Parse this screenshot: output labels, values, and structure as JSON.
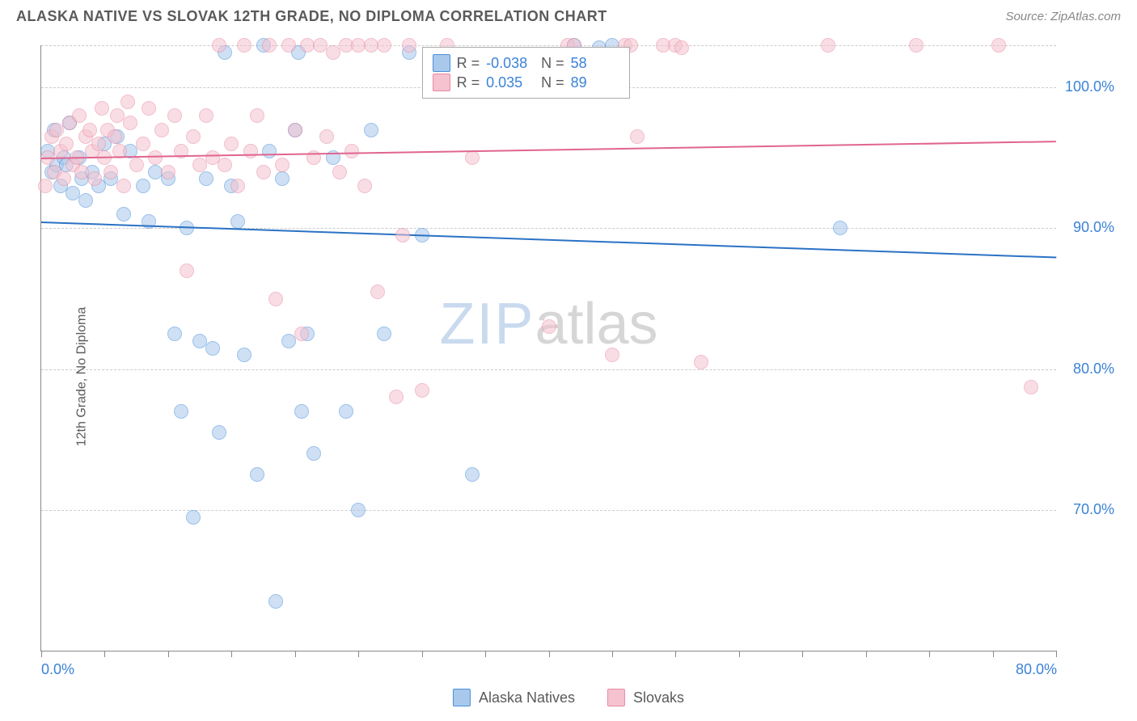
{
  "title": "ALASKA NATIVE VS SLOVAK 12TH GRADE, NO DIPLOMA CORRELATION CHART",
  "source": "Source: ZipAtlas.com",
  "ylabel": "12th Grade, No Diploma",
  "watermark_zip": "ZIP",
  "watermark_atlas": "atlas",
  "chart": {
    "type": "scatter",
    "xlim": [
      0,
      80
    ],
    "ylim": [
      60,
      103
    ],
    "xtick_step": 5,
    "xtick_labels": [
      {
        "x": 0,
        "label": "0.0%"
      },
      {
        "x": 80,
        "label": "80.0%"
      }
    ],
    "ytick_labels": [
      {
        "y": 70,
        "label": "70.0%"
      },
      {
        "y": 80,
        "label": "80.0%"
      },
      {
        "y": 90,
        "label": "90.0%"
      },
      {
        "y": 100,
        "label": "100.0%"
      }
    ],
    "gridlines_y": [
      70,
      80,
      90,
      100,
      103
    ],
    "background_color": "#ffffff",
    "grid_color": "#cccccc",
    "axis_color": "#888888",
    "label_color": "#3b82d6",
    "text_color": "#5a5a5a",
    "point_radius": 9,
    "point_opacity": 0.55,
    "series": [
      {
        "name": "Alaska Natives",
        "fill_color": "#a8c8ec",
        "stroke_color": "#4a90d9",
        "trend": {
          "y_at_x0": 90.5,
          "y_at_xmax": 88.0,
          "color": "#2a72c4",
          "width": 2
        },
        "R": "-0.038",
        "N": "58",
        "points": [
          [
            0.5,
            95.5
          ],
          [
            0.8,
            94.0
          ],
          [
            1.0,
            97.0
          ],
          [
            1.2,
            94.5
          ],
          [
            1.5,
            93.0
          ],
          [
            1.8,
            95.0
          ],
          [
            2.0,
            94.5
          ],
          [
            2.2,
            97.5
          ],
          [
            2.5,
            92.5
          ],
          [
            3.0,
            95.0
          ],
          [
            3.2,
            93.5
          ],
          [
            3.5,
            92.0
          ],
          [
            4.0,
            94.0
          ],
          [
            4.5,
            93.0
          ],
          [
            5.0,
            96.0
          ],
          [
            5.5,
            93.5
          ],
          [
            6.0,
            96.5
          ],
          [
            6.5,
            91.0
          ],
          [
            7.0,
            95.5
          ],
          [
            8.0,
            93.0
          ],
          [
            8.5,
            90.5
          ],
          [
            9.0,
            94.0
          ],
          [
            10.0,
            93.5
          ],
          [
            10.5,
            82.5
          ],
          [
            11.0,
            77.0
          ],
          [
            11.5,
            90.0
          ],
          [
            12.0,
            69.5
          ],
          [
            12.5,
            82.0
          ],
          [
            13.0,
            93.5
          ],
          [
            13.5,
            81.5
          ],
          [
            14.0,
            75.5
          ],
          [
            14.5,
            102.5
          ],
          [
            15.0,
            93.0
          ],
          [
            15.5,
            90.5
          ],
          [
            16.0,
            81.0
          ],
          [
            17.0,
            72.5
          ],
          [
            17.5,
            103.0
          ],
          [
            18.0,
            95.5
          ],
          [
            18.5,
            63.5
          ],
          [
            19.0,
            93.5
          ],
          [
            19.5,
            82.0
          ],
          [
            20.0,
            97.0
          ],
          [
            20.3,
            102.5
          ],
          [
            20.5,
            77.0
          ],
          [
            21.0,
            82.5
          ],
          [
            21.5,
            74.0
          ],
          [
            23.0,
            95.0
          ],
          [
            24.0,
            77.0
          ],
          [
            25.0,
            70.0
          ],
          [
            26.0,
            97.0
          ],
          [
            27.0,
            82.5
          ],
          [
            29.0,
            102.5
          ],
          [
            30.0,
            89.5
          ],
          [
            34.0,
            72.5
          ],
          [
            42.0,
            103.0
          ],
          [
            44.0,
            102.8
          ],
          [
            45.0,
            103.0
          ],
          [
            63.0,
            90.0
          ]
        ]
      },
      {
        "name": "Slovaks",
        "fill_color": "#f5c2cf",
        "stroke_color": "#e88ba3",
        "trend": {
          "y_at_x0": 95.0,
          "y_at_xmax": 96.2,
          "color": "#e06590",
          "width": 2
        },
        "R": "0.035",
        "N": "89",
        "points": [
          [
            0.3,
            93.0
          ],
          [
            0.5,
            95.0
          ],
          [
            0.8,
            96.5
          ],
          [
            1.0,
            94.0
          ],
          [
            1.2,
            97.0
          ],
          [
            1.5,
            95.5
          ],
          [
            1.8,
            93.5
          ],
          [
            2.0,
            96.0
          ],
          [
            2.2,
            97.5
          ],
          [
            2.5,
            94.5
          ],
          [
            2.8,
            95.0
          ],
          [
            3.0,
            98.0
          ],
          [
            3.2,
            94.0
          ],
          [
            3.5,
            96.5
          ],
          [
            3.8,
            97.0
          ],
          [
            4.0,
            95.5
          ],
          [
            4.2,
            93.5
          ],
          [
            4.5,
            96.0
          ],
          [
            4.8,
            98.5
          ],
          [
            5.0,
            95.0
          ],
          [
            5.2,
            97.0
          ],
          [
            5.5,
            94.0
          ],
          [
            5.8,
            96.5
          ],
          [
            6.0,
            98.0
          ],
          [
            6.2,
            95.5
          ],
          [
            6.5,
            93.0
          ],
          [
            7.0,
            97.5
          ],
          [
            7.5,
            94.5
          ],
          [
            8.0,
            96.0
          ],
          [
            8.5,
            98.5
          ],
          [
            9.0,
            95.0
          ],
          [
            9.5,
            97.0
          ],
          [
            10.0,
            94.0
          ],
          [
            10.5,
            98.0
          ],
          [
            11.0,
            95.5
          ],
          [
            11.5,
            87.0
          ],
          [
            12.0,
            96.5
          ],
          [
            12.5,
            94.5
          ],
          [
            13.0,
            98.0
          ],
          [
            13.5,
            95.0
          ],
          [
            14.0,
            103.0
          ],
          [
            14.5,
            94.5
          ],
          [
            15.0,
            96.0
          ],
          [
            15.5,
            93.0
          ],
          [
            16.0,
            103.0
          ],
          [
            16.5,
            95.5
          ],
          [
            17.0,
            98.0
          ],
          [
            17.5,
            94.0
          ],
          [
            18.0,
            103.0
          ],
          [
            18.5,
            85.0
          ],
          [
            19.0,
            94.5
          ],
          [
            19.5,
            103.0
          ],
          [
            20.0,
            97.0
          ],
          [
            20.5,
            82.5
          ],
          [
            21.0,
            103.0
          ],
          [
            21.5,
            95.0
          ],
          [
            22.0,
            103.0
          ],
          [
            22.5,
            96.5
          ],
          [
            23.0,
            102.5
          ],
          [
            23.5,
            94.0
          ],
          [
            24.0,
            103.0
          ],
          [
            24.5,
            95.5
          ],
          [
            25.0,
            103.0
          ],
          [
            25.5,
            93.0
          ],
          [
            26.0,
            103.0
          ],
          [
            26.5,
            85.5
          ],
          [
            27.0,
            103.0
          ],
          [
            28.0,
            78.0
          ],
          [
            28.5,
            89.5
          ],
          [
            29.0,
            103.0
          ],
          [
            30.0,
            78.5
          ],
          [
            32.0,
            103.0
          ],
          [
            34.0,
            95.0
          ],
          [
            40.0,
            83.0
          ],
          [
            41.5,
            103.0
          ],
          [
            42.0,
            103.0
          ],
          [
            45.0,
            81.0
          ],
          [
            46.0,
            103.0
          ],
          [
            46.5,
            103.0
          ],
          [
            49.0,
            103.0
          ],
          [
            50.0,
            103.0
          ],
          [
            50.5,
            102.8
          ],
          [
            52.0,
            80.5
          ],
          [
            62.0,
            103.0
          ],
          [
            69.0,
            103.0
          ],
          [
            75.5,
            103.0
          ],
          [
            78.0,
            78.7
          ],
          [
            47.0,
            96.5
          ],
          [
            6.8,
            99.0
          ]
        ]
      }
    ]
  },
  "stats_box": {
    "rows": [
      {
        "swatch_fill": "#a8c8ec",
        "swatch_stroke": "#4a90d9",
        "r_label": "R =",
        "r_val": "-0.038",
        "n_label": "N =",
        "n_val": "58"
      },
      {
        "swatch_fill": "#f5c2cf",
        "swatch_stroke": "#e88ba3",
        "r_label": "R =",
        "r_val": "0.035",
        "n_label": "N =",
        "n_val": "89"
      }
    ]
  },
  "legend": {
    "items": [
      {
        "swatch_fill": "#a8c8ec",
        "swatch_stroke": "#4a90d9",
        "label": "Alaska Natives"
      },
      {
        "swatch_fill": "#f5c2cf",
        "swatch_stroke": "#e88ba3",
        "label": "Slovaks"
      }
    ]
  }
}
